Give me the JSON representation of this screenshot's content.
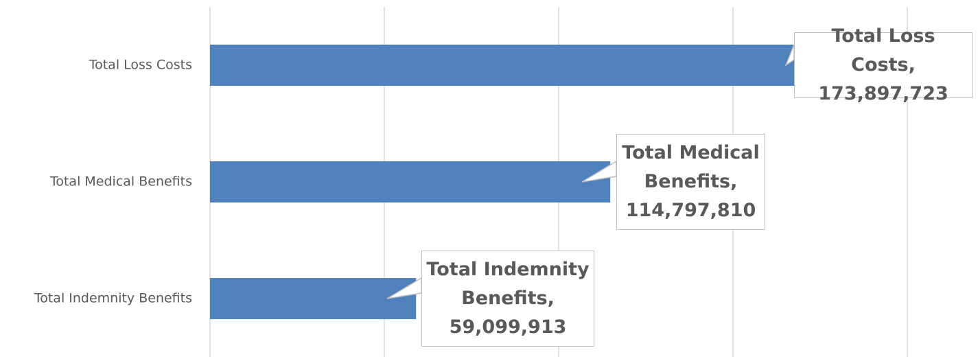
{
  "chart_data": {
    "type": "bar",
    "orientation": "horizontal",
    "categories": [
      "Total Loss Costs",
      "Total Medical Benefits",
      "Total Indemnity Benefits"
    ],
    "values": [
      173897723,
      114797810,
      59099913
    ],
    "value_labels": [
      "Total Loss Costs, 173,897,723",
      "Total Medical Benefits, 114,797,810",
      "Total Indemnity Benefits, 59,099,913"
    ],
    "color": "#4f81bd",
    "xlim": [
      0,
      200000000
    ],
    "xticks": [
      0,
      50000000,
      100000000,
      150000000,
      200000000
    ],
    "grid": true
  }
}
